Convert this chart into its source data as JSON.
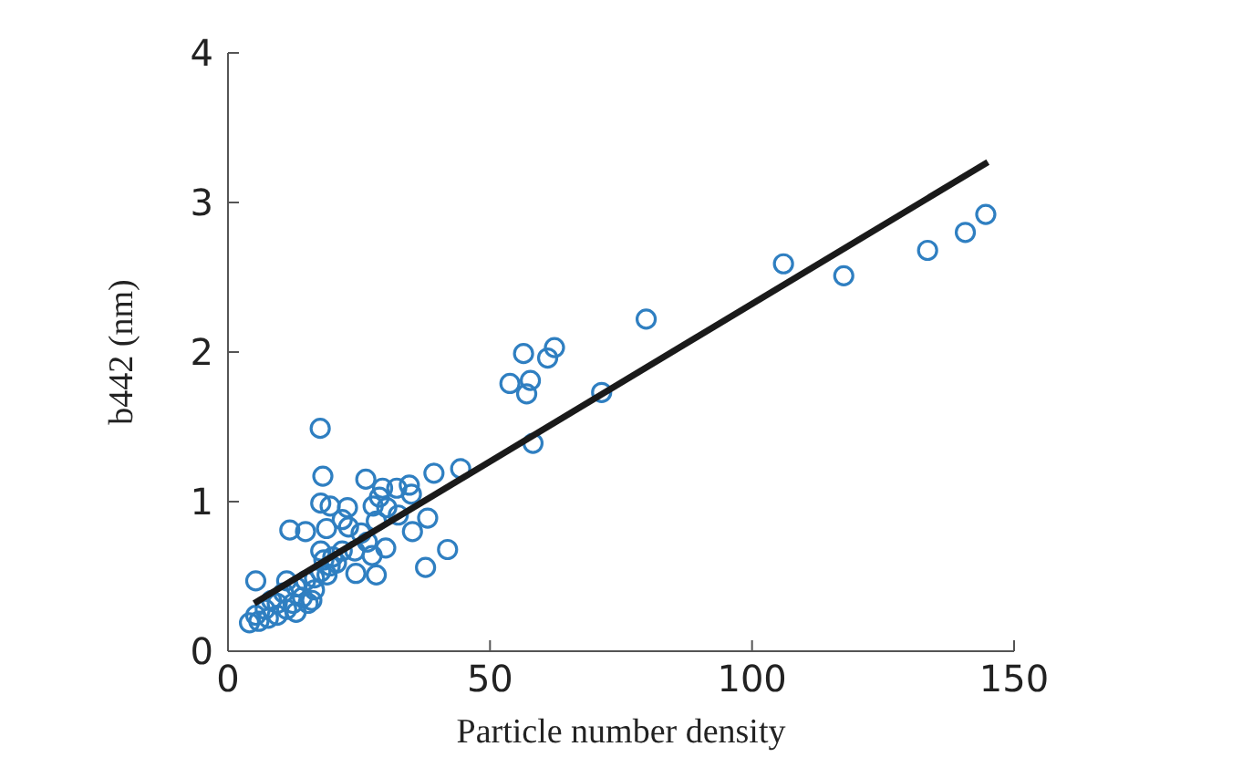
{
  "chart_data": {
    "type": "scatter",
    "xlabel": "Particle number density",
    "ylabel": "b442 (nm)",
    "xlim": [
      0,
      150
    ],
    "xticks": [
      0,
      50,
      100,
      150
    ],
    "ylim": [
      0,
      4
    ],
    "yticks": [
      0,
      1,
      2,
      3,
      4
    ],
    "grid": false,
    "legend": false,
    "marker": "circle",
    "series": [
      {
        "color": "#2f7fc1",
        "x": [
          144.6,
          140.7,
          133.5,
          117.5,
          106,
          79.8,
          71.3,
          62.3,
          61,
          56.4,
          53.8,
          57.7,
          57,
          58.2,
          44.4,
          39.3,
          38.1,
          37.7,
          41.9,
          35.2,
          17.6,
          18.1,
          26.3,
          17.7,
          5.3,
          11.8,
          14.8,
          18.8,
          19.5,
          22.8,
          28.3,
          24.4,
          30.1,
          29.5,
          32.2,
          34.6,
          35,
          28.9,
          30.3,
          32.5,
          28.3,
          27.7,
          21.8,
          23,
          25.4,
          26.6,
          24.2,
          21.8,
          27.5,
          20,
          18.3,
          17.7,
          19.5,
          20.7,
          11.2,
          10.6,
          13,
          14.8,
          16.5,
          16,
          12.4,
          9.4,
          7.1,
          5.3,
          5.9,
          4.1,
          7.7,
          9.4,
          13,
          16.5,
          17.7,
          18.9,
          14.2,
          11.2,
          15.3,
          8.3
        ],
        "values": [
          2.92,
          2.8,
          2.68,
          2.51,
          2.59,
          2.22,
          1.73,
          2.03,
          1.96,
          1.99,
          1.79,
          1.81,
          1.72,
          1.39,
          1.22,
          1.19,
          0.89,
          0.56,
          0.68,
          0.8,
          1.49,
          1.17,
          1.15,
          0.99,
          0.47,
          0.81,
          0.8,
          0.82,
          0.97,
          0.96,
          0.51,
          0.52,
          0.69,
          1.09,
          1.09,
          1.11,
          1.05,
          1.03,
          0.96,
          0.91,
          0.87,
          0.97,
          0.88,
          0.83,
          0.79,
          0.73,
          0.67,
          0.67,
          0.64,
          0.63,
          0.61,
          0.67,
          0.57,
          0.59,
          0.47,
          0.39,
          0.43,
          0.47,
          0.41,
          0.34,
          0.32,
          0.32,
          0.28,
          0.24,
          0.2,
          0.19,
          0.22,
          0.24,
          0.26,
          0.49,
          0.53,
          0.51,
          0.36,
          0.28,
          0.32,
          0.34
        ]
      },
      {
        "type": "line",
        "color": "#1a1a1a",
        "line_style": "solid",
        "marker": "none",
        "x": [
          5,
          145
        ],
        "values": [
          0.32,
          3.27
        ]
      }
    ]
  }
}
